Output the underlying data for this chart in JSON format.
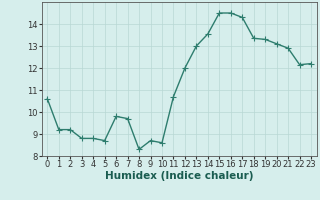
{
  "x": [
    0,
    1,
    2,
    3,
    4,
    5,
    6,
    7,
    8,
    9,
    10,
    11,
    12,
    13,
    14,
    15,
    16,
    17,
    18,
    19,
    20,
    21,
    22,
    23
  ],
  "y": [
    10.6,
    9.2,
    9.2,
    8.8,
    8.8,
    8.7,
    9.8,
    9.7,
    8.3,
    8.7,
    8.6,
    10.7,
    12.0,
    13.0,
    13.55,
    14.5,
    14.5,
    14.3,
    13.35,
    13.3,
    13.1,
    12.9,
    12.15,
    12.2
  ],
  "line_color": "#2e7d6e",
  "marker_color": "#2e7d6e",
  "background_color": "#d6eeec",
  "grid_color": "#b8d8d4",
  "xlabel": "Humidex (Indice chaleur)",
  "ylim": [
    8,
    15
  ],
  "xlim_min": -0.5,
  "xlim_max": 23.5,
  "yticks": [
    8,
    9,
    10,
    11,
    12,
    13,
    14
  ],
  "xticks": [
    0,
    1,
    2,
    3,
    4,
    5,
    6,
    7,
    8,
    9,
    10,
    11,
    12,
    13,
    14,
    15,
    16,
    17,
    18,
    19,
    20,
    21,
    22,
    23
  ],
  "tick_fontsize": 6,
  "xlabel_fontsize": 7.5,
  "line_width": 1.0,
  "marker_size": 2.0
}
